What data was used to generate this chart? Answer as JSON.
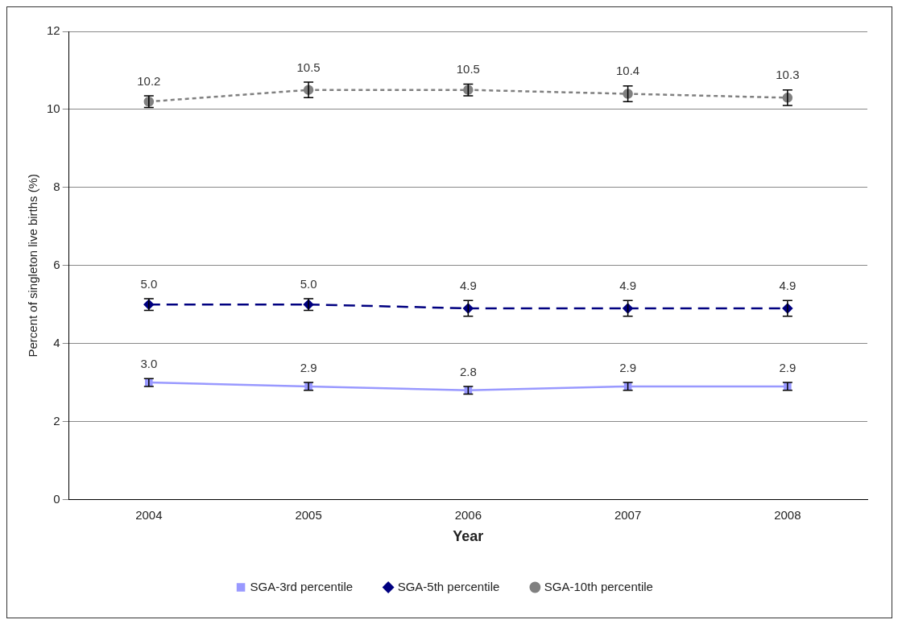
{
  "chart_data": {
    "type": "line",
    "xlabel": "Year",
    "ylabel": "Percent of singleton live births (%)",
    "categories": [
      "2004",
      "2005",
      "2006",
      "2007",
      "2008"
    ],
    "ylim": [
      0,
      12
    ],
    "yticks": [
      0,
      2,
      4,
      6,
      8,
      10,
      12
    ],
    "grid": "y",
    "legend": "bottom",
    "series": [
      {
        "name": "SGA-3rd percentile",
        "color": "#9999ff",
        "marker": "square",
        "line_style": "solid",
        "values": [
          3.0,
          2.9,
          2.8,
          2.9,
          2.9
        ],
        "errors": [
          0.1,
          0.1,
          0.1,
          0.1,
          0.1
        ],
        "value_labels": [
          "3.0",
          "2.9",
          "2.8",
          "2.9",
          "2.9"
        ]
      },
      {
        "name": "SGA-5th percentile",
        "color": "#000080",
        "marker": "diamond",
        "line_style": "dashed",
        "values": [
          5.0,
          5.0,
          4.9,
          4.9,
          4.9
        ],
        "errors": [
          0.15,
          0.15,
          0.2,
          0.2,
          0.2
        ],
        "value_labels": [
          "5.0",
          "5.0",
          "4.9",
          "4.9",
          "4.9"
        ]
      },
      {
        "name": "SGA-10th percentile",
        "color": "#808080",
        "marker": "circle",
        "line_style": "dotted",
        "values": [
          10.2,
          10.5,
          10.5,
          10.4,
          10.3
        ],
        "errors": [
          0.15,
          0.2,
          0.15,
          0.2,
          0.2
        ],
        "value_labels": [
          "10.2",
          "10.5",
          "10.5",
          "10.4",
          "10.3"
        ]
      }
    ]
  }
}
